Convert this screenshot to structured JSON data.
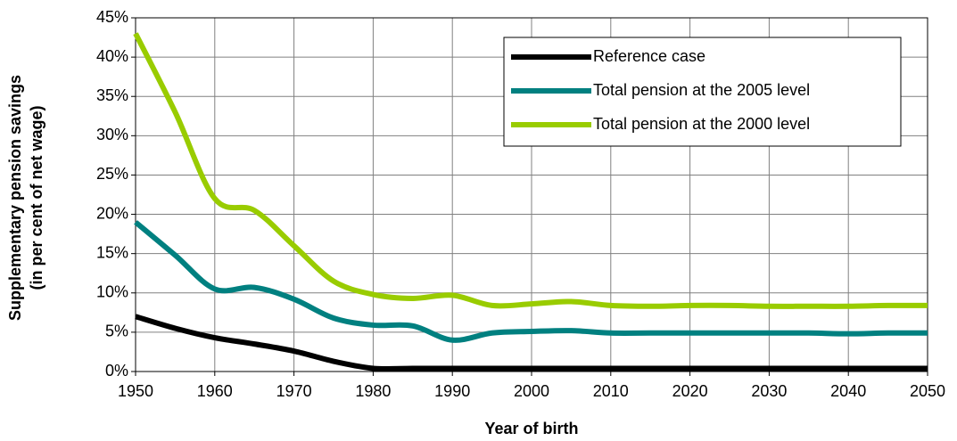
{
  "chart_data": {
    "type": "line",
    "xlabel": "Year of birth",
    "ylabel": [
      "Supplementary pension savings",
      "(in per cent of net wage)"
    ],
    "x": [
      1950,
      1955,
      1960,
      1965,
      1970,
      1975,
      1980,
      1985,
      1990,
      1995,
      2000,
      2005,
      2010,
      2015,
      2020,
      2025,
      2030,
      2035,
      2040,
      2045,
      2050
    ],
    "series": [
      {
        "name": "Reference case",
        "color": "#000000",
        "values": [
          7,
          5.5,
          4.3,
          3.5,
          2.6,
          1.3,
          0.4,
          0.4,
          0.4,
          0.4,
          0.4,
          0.4,
          0.4,
          0.4,
          0.4,
          0.4,
          0.4,
          0.4,
          0.4,
          0.4,
          0.4
        ]
      },
      {
        "name": "Total pension at the 2005 level",
        "color": "#008080",
        "values": [
          19,
          14.8,
          10.5,
          10.7,
          9.2,
          6.8,
          5.9,
          5.8,
          4.0,
          4.9,
          5.1,
          5.2,
          4.9,
          4.9,
          4.9,
          4.9,
          4.9,
          4.9,
          4.8,
          4.9,
          4.9
        ]
      },
      {
        "name": "Total pension at the 2000 level",
        "color": "#99cc00",
        "values": [
          43,
          33,
          22,
          20.5,
          16,
          11.5,
          9.8,
          9.3,
          9.7,
          8.4,
          8.6,
          8.9,
          8.4,
          8.3,
          8.4,
          8.4,
          8.3,
          8.3,
          8.3,
          8.4,
          8.4
        ]
      }
    ],
    "xlim": [
      1950,
      2050
    ],
    "xticks": [
      1950,
      1960,
      1970,
      1980,
      1990,
      2000,
      2010,
      2020,
      2030,
      2040,
      2050
    ],
    "ylim": [
      0,
      45
    ],
    "yticks": [
      {
        "value": 0,
        "label": "0%"
      },
      {
        "value": 5,
        "label": "5%"
      },
      {
        "value": 10,
        "label": "10%"
      },
      {
        "value": 15,
        "label": "15%"
      },
      {
        "value": 20,
        "label": "20%"
      },
      {
        "value": 25,
        "label": "25%"
      },
      {
        "value": 30,
        "label": "30%"
      },
      {
        "value": 35,
        "label": "35%"
      },
      {
        "value": 40,
        "label": "40%"
      },
      {
        "value": 45,
        "label": "45%"
      }
    ],
    "grid": true,
    "legend": "top-right"
  }
}
